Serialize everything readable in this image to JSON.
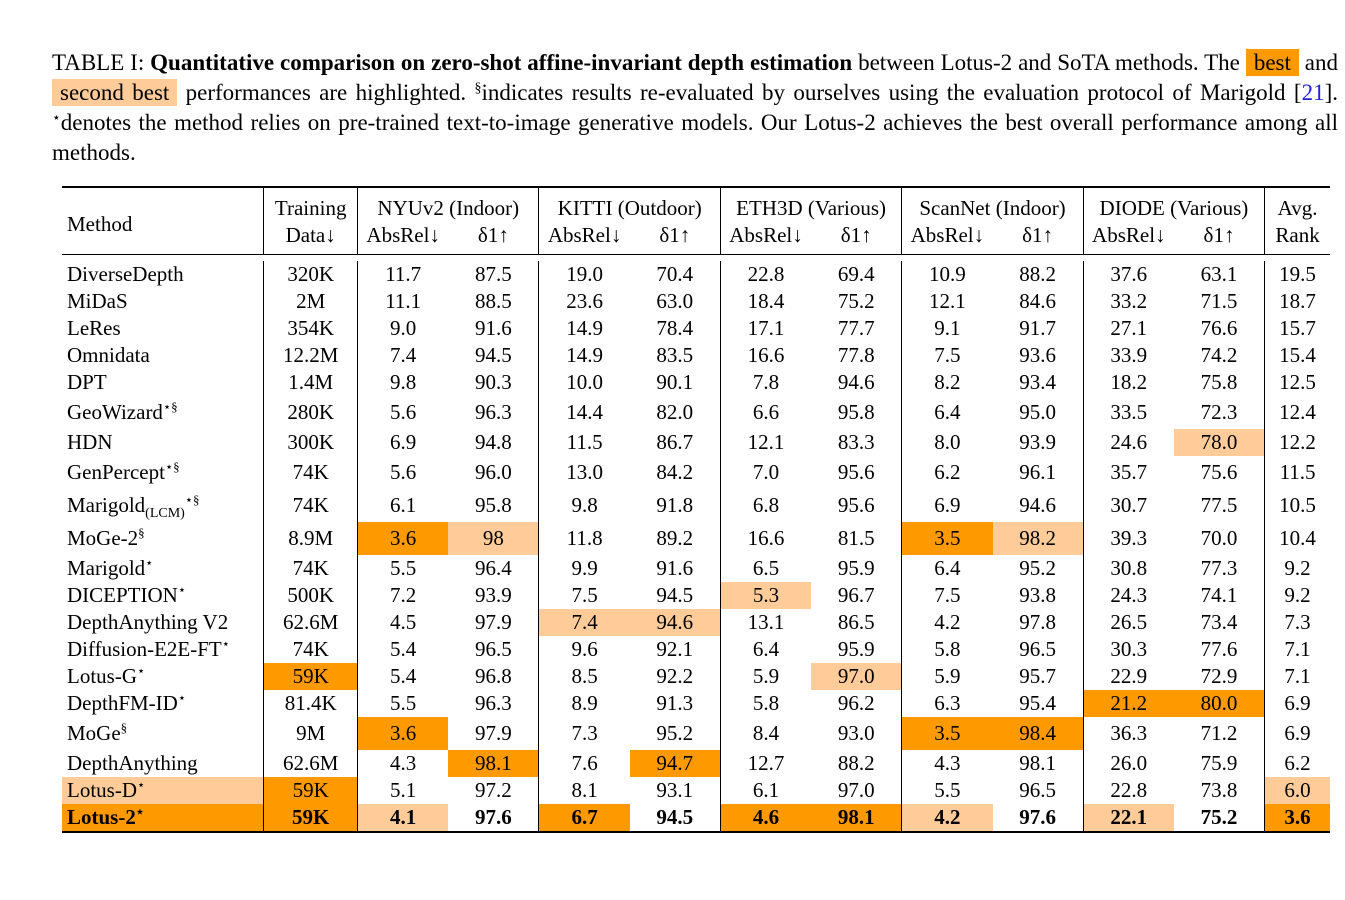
{
  "caption": {
    "label": "TABLE I:",
    "bold_title": "Quantitative comparison on zero-shot affine-invariant depth estimation",
    "text1": " between Lotus-2 and SoTA methods. The ",
    "best_label": "best",
    "text2": " and ",
    "second_label": "second best",
    "text3": " performances are highlighted. ",
    "section_mark": "§",
    "text4": "indicates results re-evaluated by ourselves using the evaluation protocol of Marigold [",
    "ref": "21",
    "text5": "]. ",
    "star_mark": "⋆",
    "text6": "denotes the method relies on pre-trained text-to-image generative models. Our Lotus-2 achieves the best overall performance among all methods."
  },
  "header": {
    "method": "Method",
    "training_line1": "Training",
    "training_line2": "Data↓",
    "groups": [
      "NYUv2 (Indoor)",
      "KITTI (Outdoor)",
      "ETH3D (Various)",
      "ScanNet (Indoor)",
      "DIODE (Various)"
    ],
    "absrel": "AbsRel↓",
    "delta": "δ1↑",
    "rank_line1": "Avg.",
    "rank_line2": "Rank"
  },
  "colors": {
    "best": "#ff9900",
    "second": "#ffcc99"
  },
  "rows": [
    {
      "name": "DiverseDepth",
      "sub": "",
      "sup": "",
      "train": "320K",
      "v": [
        "11.7",
        "87.5",
        "19.0",
        "70.4",
        "22.8",
        "69.4",
        "10.9",
        "88.2",
        "37.6",
        "63.1"
      ],
      "rank": "19.5"
    },
    {
      "name": "MiDaS",
      "sub": "",
      "sup": "",
      "train": "2M",
      "v": [
        "11.1",
        "88.5",
        "23.6",
        "63.0",
        "18.4",
        "75.2",
        "12.1",
        "84.6",
        "33.2",
        "71.5"
      ],
      "rank": "18.7"
    },
    {
      "name": "LeRes",
      "sub": "",
      "sup": "",
      "train": "354K",
      "v": [
        "9.0",
        "91.6",
        "14.9",
        "78.4",
        "17.1",
        "77.7",
        "9.1",
        "91.7",
        "27.1",
        "76.6"
      ],
      "rank": "15.7"
    },
    {
      "name": "Omnidata",
      "sub": "",
      "sup": "",
      "train": "12.2M",
      "v": [
        "7.4",
        "94.5",
        "14.9",
        "83.5",
        "16.6",
        "77.8",
        "7.5",
        "93.6",
        "33.9",
        "74.2"
      ],
      "rank": "15.4"
    },
    {
      "name": "DPT",
      "sub": "",
      "sup": "",
      "train": "1.4M",
      "v": [
        "9.8",
        "90.3",
        "10.0",
        "90.1",
        "7.8",
        "94.6",
        "8.2",
        "93.4",
        "18.2",
        "75.8"
      ],
      "rank": "12.5"
    },
    {
      "name": "GeoWizard",
      "sub": "",
      "sup": "⋆§",
      "train": "280K",
      "v": [
        "5.6",
        "96.3",
        "14.4",
        "82.0",
        "6.6",
        "95.8",
        "6.4",
        "95.0",
        "33.5",
        "72.3"
      ],
      "rank": "12.4"
    },
    {
      "name": "HDN",
      "sub": "",
      "sup": "",
      "train": "300K",
      "v": [
        "6.9",
        "94.8",
        "11.5",
        "86.7",
        "12.1",
        "83.3",
        "8.0",
        "93.9",
        "24.6",
        "78.0"
      ],
      "rank": "12.2"
    },
    {
      "name": "GenPercept",
      "sub": "",
      "sup": "⋆§",
      "train": "74K",
      "v": [
        "5.6",
        "96.0",
        "13.0",
        "84.2",
        "7.0",
        "95.6",
        "6.2",
        "96.1",
        "35.7",
        "75.6"
      ],
      "rank": "11.5"
    },
    {
      "name": "Marigold",
      "sub": "(LCM)",
      "sup": "⋆§",
      "train": "74K",
      "v": [
        "6.1",
        "95.8",
        "9.8",
        "91.8",
        "6.8",
        "95.6",
        "6.9",
        "94.6",
        "30.7",
        "77.5"
      ],
      "rank": "10.5"
    },
    {
      "name": "MoGe-2",
      "sub": "",
      "sup": "§",
      "train": "8.9M",
      "v": [
        "3.6",
        "98",
        "11.8",
        "89.2",
        "16.6",
        "81.5",
        "3.5",
        "98.2",
        "39.3",
        "70.0"
      ],
      "rank": "10.4"
    },
    {
      "name": "Marigold",
      "sub": "",
      "sup": "⋆",
      "train": "74K",
      "v": [
        "5.5",
        "96.4",
        "9.9",
        "91.6",
        "6.5",
        "95.9",
        "6.4",
        "95.2",
        "30.8",
        "77.3"
      ],
      "rank": "9.2"
    },
    {
      "name": "DICEPTION",
      "sub": "",
      "sup": "⋆",
      "train": "500K",
      "v": [
        "7.2",
        "93.9",
        "7.5",
        "94.5",
        "5.3",
        "96.7",
        "7.5",
        "93.8",
        "24.3",
        "74.1"
      ],
      "rank": "9.2"
    },
    {
      "name": "DepthAnything V2",
      "sub": "",
      "sup": "",
      "train": "62.6M",
      "v": [
        "4.5",
        "97.9",
        "7.4",
        "94.6",
        "13.1",
        "86.5",
        "4.2",
        "97.8",
        "26.5",
        "73.4"
      ],
      "rank": "7.3"
    },
    {
      "name": "Diffusion-E2E-FT",
      "sub": "",
      "sup": "⋆",
      "train": "74K",
      "v": [
        "5.4",
        "96.5",
        "9.6",
        "92.1",
        "6.4",
        "95.9",
        "5.8",
        "96.5",
        "30.3",
        "77.6"
      ],
      "rank": "7.1"
    },
    {
      "name": "Lotus-G",
      "sub": "",
      "sup": "⋆",
      "train": "59K",
      "v": [
        "5.4",
        "96.8",
        "8.5",
        "92.2",
        "5.9",
        "97.0",
        "5.9",
        "95.7",
        "22.9",
        "72.9"
      ],
      "rank": "7.1"
    },
    {
      "name": "DepthFM-ID",
      "sub": "",
      "sup": "⋆",
      "train": "81.4K",
      "v": [
        "5.5",
        "96.3",
        "8.9",
        "91.3",
        "5.8",
        "96.2",
        "6.3",
        "95.4",
        "21.2",
        "80.0"
      ],
      "rank": "6.9"
    },
    {
      "name": "MoGe",
      "sub": "",
      "sup": "§",
      "train": "9M",
      "v": [
        "3.6",
        "97.9",
        "7.3",
        "95.2",
        "8.4",
        "93.0",
        "3.5",
        "98.4",
        "36.3",
        "71.2"
      ],
      "rank": "6.9"
    },
    {
      "name": "DepthAnything",
      "sub": "",
      "sup": "",
      "train": "62.6M",
      "v": [
        "4.3",
        "98.1",
        "7.6",
        "94.7",
        "12.7",
        "88.2",
        "4.3",
        "98.1",
        "26.0",
        "75.9"
      ],
      "rank": "6.2"
    },
    {
      "name": "Lotus-D",
      "sub": "",
      "sup": "⋆",
      "train": "59K",
      "v": [
        "5.1",
        "97.2",
        "8.1",
        "93.1",
        "6.1",
        "97.0",
        "5.5",
        "96.5",
        "22.8",
        "73.8"
      ],
      "rank": "6.0"
    },
    {
      "name": "Lotus-2",
      "sub": "",
      "sup": "⋆",
      "train": "59K",
      "v": [
        "4.1",
        "97.6",
        "6.7",
        "94.5",
        "4.6",
        "98.1",
        "4.2",
        "97.6",
        "22.1",
        "75.2"
      ],
      "rank": "3.6"
    }
  ]
}
